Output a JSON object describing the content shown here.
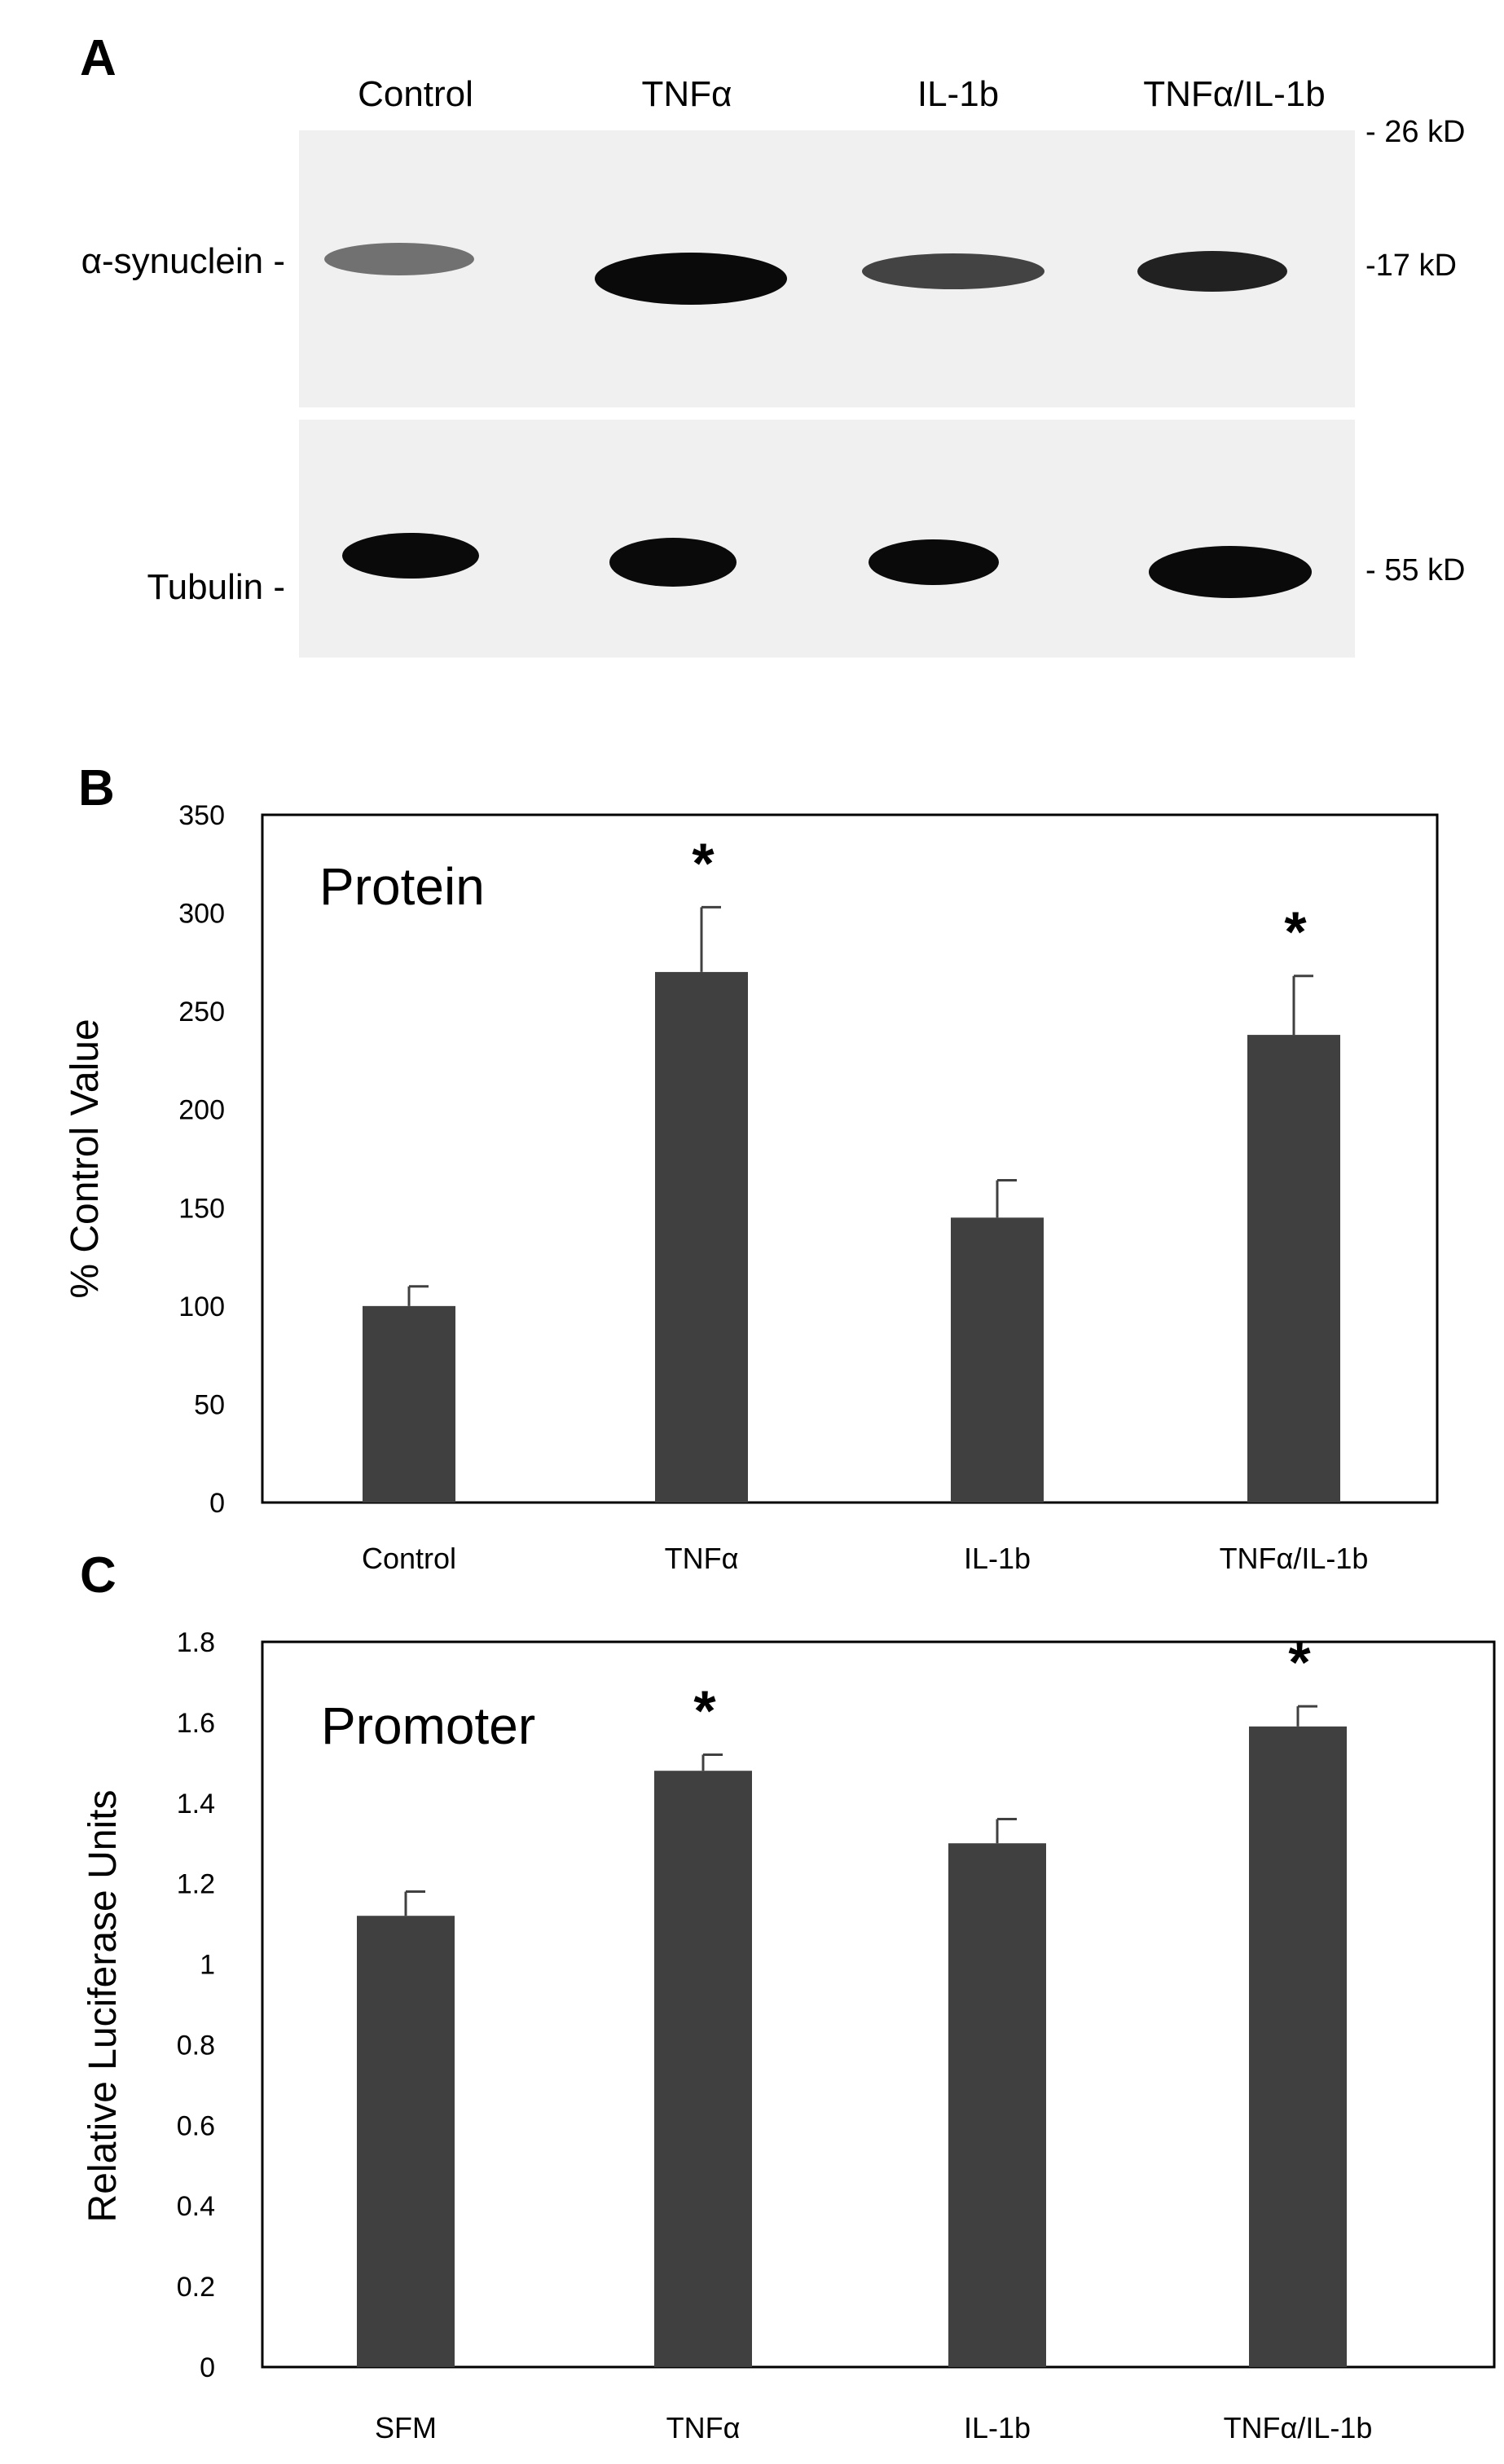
{
  "panel_a": {
    "label": "A",
    "lanes": [
      "Control",
      "TNFα",
      "IL-1b",
      "TNFα/IL-1b"
    ],
    "row_labels": [
      "α-synuclein -",
      "Tubulin -"
    ],
    "markers": [
      "- 26 kD",
      "-17 kD",
      "- 55 kD"
    ],
    "blot_bg": "#f0f0f0",
    "band_color": "#0a0a0a",
    "band_intensity": {
      "alpha_synuclein": [
        0.5,
        1.0,
        0.7,
        0.8
      ],
      "tubulin": [
        0.9,
        0.9,
        0.9,
        1.0
      ]
    }
  },
  "chart_data": [
    {
      "panel": "B",
      "type": "bar",
      "annotation": "Protein",
      "categories": [
        "Control",
        "TNFα",
        "IL-1b",
        "TNFα/IL-1b"
      ],
      "values": [
        100,
        270,
        145,
        238
      ],
      "errors": [
        10,
        33,
        19,
        30
      ],
      "significance": [
        "",
        "*",
        "",
        "*"
      ],
      "ylabel": "% Control Value",
      "ylim": [
        0,
        350
      ],
      "yticks": [
        0,
        50,
        100,
        150,
        200,
        250,
        300,
        350
      ],
      "ytick_labels": [
        "0",
        "50",
        "100",
        "150",
        "200",
        "250",
        "300",
        "350"
      ],
      "grid": false,
      "bar_color": "#404040"
    },
    {
      "panel": "C",
      "type": "bar",
      "annotation": "Promoter",
      "categories": [
        "SFM",
        "TNFα",
        "IL-1b",
        "TNFα/IL-1b"
      ],
      "values": [
        1.12,
        1.48,
        1.3,
        1.59
      ],
      "errors": [
        0.06,
        0.04,
        0.06,
        0.05
      ],
      "significance": [
        "",
        "*",
        "",
        "*"
      ],
      "ylabel": "Relative Luciferase Units",
      "ylim": [
        0,
        1.8
      ],
      "yticks": [
        0,
        0.2,
        0.4,
        0.6,
        0.8,
        1,
        1.2,
        1.4,
        1.6,
        1.8
      ],
      "ytick_labels": [
        "0",
        "0.2",
        "0.4",
        "0.6",
        "0.8",
        "1",
        "1.2",
        "1.4",
        "1.6",
        "1.8"
      ],
      "grid": false,
      "bar_color": "#404040"
    }
  ]
}
